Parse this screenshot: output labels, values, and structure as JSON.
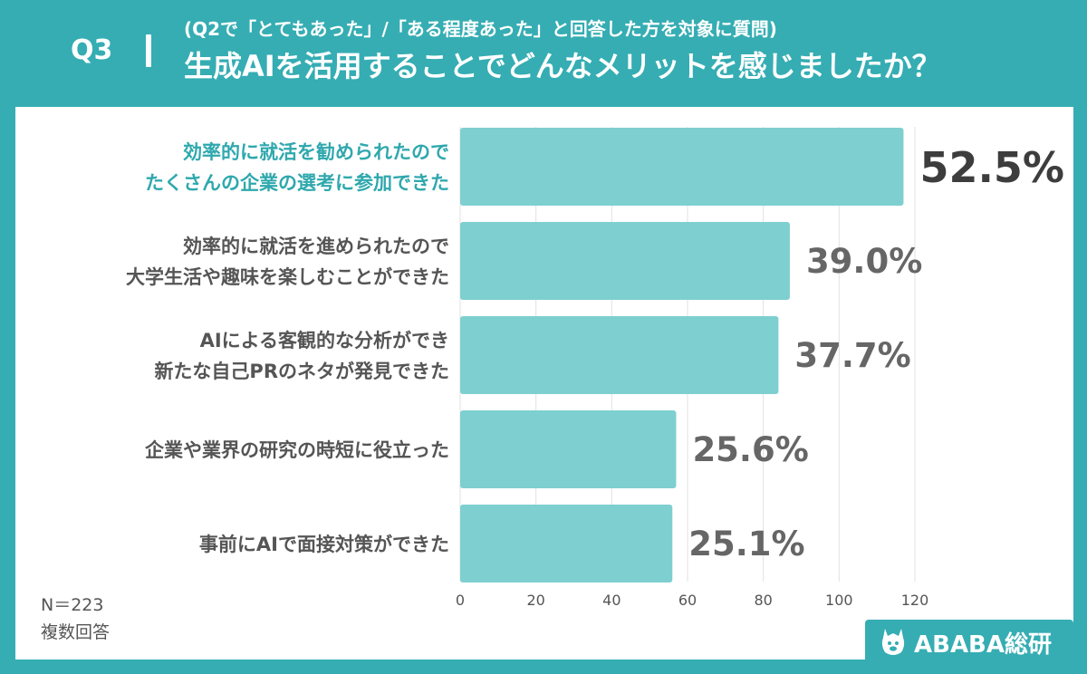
{
  "header": {
    "question": "Q3",
    "subtitle": "(Q2で「とてもあった」/「ある程度あった」と回答した方を対象に質問)",
    "title": "生成AIを活用することでどんなメリットを感じましたか？"
  },
  "footnote": {
    "n": "N＝223",
    "multiple": "複数回答"
  },
  "brand": {
    "name": "ABABA総研"
  },
  "colors": {
    "background": "#35adb3",
    "bar": "#7ecfd0",
    "highlight_label": "#2fa8ad",
    "label": "#555555",
    "top_value": "#3d3d3d",
    "value": "#666666"
  },
  "chart_data": {
    "type": "bar",
    "orientation": "horizontal",
    "categories": [
      [
        "効率的に就活を勧められたので",
        "たくさんの企業の選考に参加できた"
      ],
      [
        "効率的に就活を進められたので",
        "大学生活や趣味を楽しむことができた"
      ],
      [
        "AIによる客観的な分析ができ",
        "新たな自己PRのネタが発見できた"
      ],
      [
        "企業や業界の研究の時短に役立った"
      ],
      [
        "事前にAIで面接対策ができた"
      ]
    ],
    "values": [
      117,
      87,
      84,
      57,
      56
    ],
    "value_labels": [
      "52.5%",
      "39.0%",
      "37.7%",
      "25.6%",
      "25.1%"
    ],
    "xlim": [
      0,
      120
    ],
    "xticks": [
      0,
      20,
      40,
      60,
      80,
      100,
      120
    ],
    "grid": true,
    "highlight_index": 0
  }
}
